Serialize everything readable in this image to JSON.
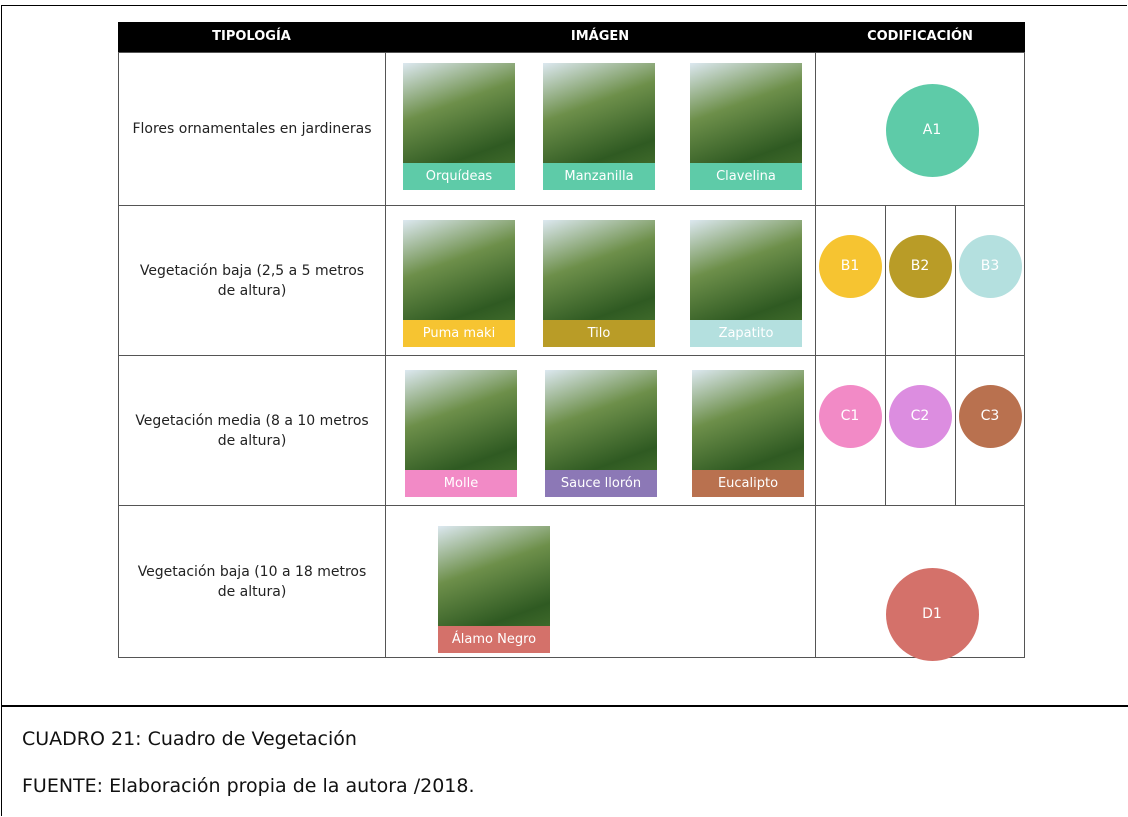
{
  "header": [
    "TIPOLOGÍA",
    "IMÁGEN",
    "CODIFICACIÓN"
  ],
  "rows": [
    {
      "typology": "Flores ornamentales en jardineras",
      "images": [
        {
          "label": "Orquídeas",
          "color": "#5ecba8"
        },
        {
          "label": "Manzanilla",
          "color": "#5ecba8"
        },
        {
          "label": "Clavelina",
          "color": "#5ecba8"
        }
      ],
      "codes": [
        {
          "label": "A1",
          "color": "#5ecba8"
        }
      ]
    },
    {
      "typology": "Vegetación baja (2,5 a 5 metros de altura)",
      "images": [
        {
          "label": "Puma maki",
          "color": "#f6c431"
        },
        {
          "label": "Tilo",
          "color": "#b99c27"
        },
        {
          "label": "Zapatito",
          "color": "#b4e0df"
        }
      ],
      "codes": [
        {
          "label": "B1",
          "color": "#f6c431"
        },
        {
          "label": "B2",
          "color": "#b99c27"
        },
        {
          "label": "B3",
          "color": "#b4e0df"
        }
      ]
    },
    {
      "typology": "Vegetación media (8 a 10 metros de altura)",
      "images": [
        {
          "label": "Molle",
          "color": "#f28ac6"
        },
        {
          "label": "Sauce llorón",
          "color": "#8c78b6"
        },
        {
          "label": "Eucalipto",
          "color": "#b9714f"
        }
      ],
      "codes": [
        {
          "label": "C1",
          "color": "#f28ac6"
        },
        {
          "label": "C2",
          "color": "#dc8de0"
        },
        {
          "label": "C3",
          "color": "#b9714f"
        }
      ]
    },
    {
      "typology": "Vegetación baja (10 a 18 metros de altura)",
      "images": [
        {
          "label": "Álamo Negro",
          "color": "#d4716a"
        }
      ],
      "codes": [
        {
          "label": "D1",
          "color": "#d4716a"
        }
      ]
    }
  ],
  "caption": "CUADRO 21: Cuadro de Vegetación",
  "source": "FUENTE:  Elaboración propia de la autora /2018."
}
